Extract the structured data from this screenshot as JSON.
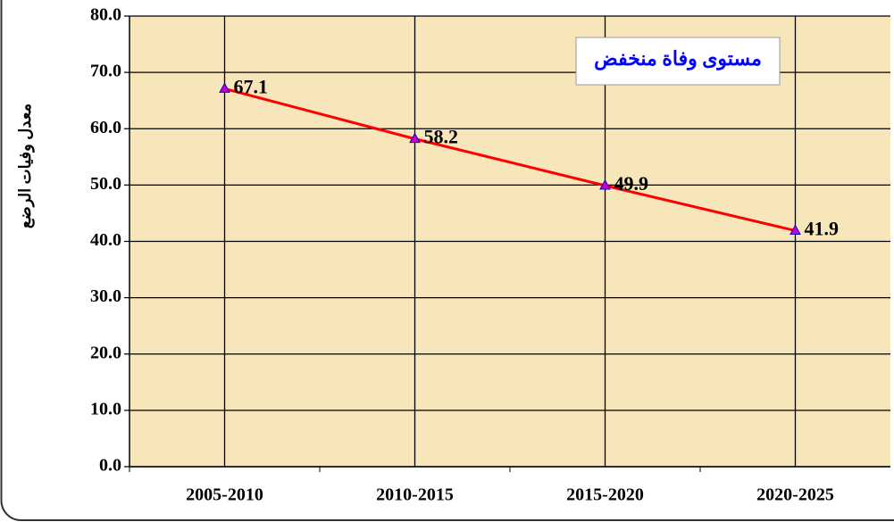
{
  "chart_data": {
    "type": "line",
    "ylabel": "معدل وفيات الرضع",
    "categories": [
      "2005-2010",
      "2010-2015",
      "2015-2020",
      "2020-2025"
    ],
    "series": [
      {
        "name": "مستوى وفاة منخفض",
        "color": "#ff0000",
        "marker_color": "#cc00cc",
        "values": [
          67.1,
          58.2,
          49.9,
          41.9
        ]
      }
    ],
    "ylim": [
      0,
      80
    ],
    "yticks": [
      {
        "value": 0,
        "label": "0.0"
      },
      {
        "value": 10,
        "label": "10.0"
      },
      {
        "value": 20,
        "label": "20.0"
      },
      {
        "value": 30,
        "label": "30.0"
      },
      {
        "value": 40,
        "label": "40.0"
      },
      {
        "value": 50,
        "label": "50.0"
      },
      {
        "value": 60,
        "label": "60.0"
      },
      {
        "value": 70,
        "label": "70.0"
      },
      {
        "value": 80,
        "label": "80.0"
      }
    ],
    "grid": true,
    "legend": "upper right",
    "background": "#f8e6bb"
  }
}
